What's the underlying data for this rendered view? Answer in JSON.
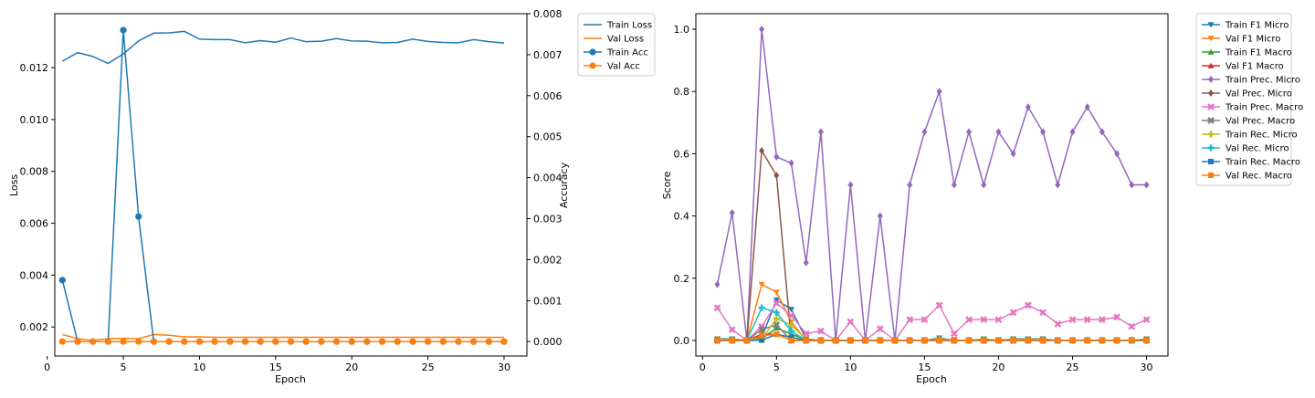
{
  "chart_data": [
    {
      "type": "line",
      "x": [
        1,
        2,
        3,
        4,
        5,
        6,
        7,
        8,
        9,
        10,
        11,
        12,
        13,
        14,
        15,
        16,
        17,
        18,
        19,
        20,
        21,
        22,
        23,
        24,
        25,
        26,
        27,
        28,
        29,
        30
      ],
      "xlabel": "Epoch",
      "ylabel": "Loss",
      "y2label": "Accuracy",
      "xlim": [
        0.5,
        31.5
      ],
      "ylim": [
        0.00088,
        0.01408
      ],
      "y2lim": [
        -0.000352,
        0.008
      ],
      "xticks": [
        "0",
        "5",
        "10",
        "15",
        "20",
        "25",
        "30"
      ],
      "yticks": [
        "0.002",
        "0.004",
        "0.006",
        "0.008",
        "0.010",
        "0.012"
      ],
      "y2ticks": [
        "0.000",
        "0.001",
        "0.002",
        "0.003",
        "0.004",
        "0.005",
        "0.006",
        "0.007",
        "0.008"
      ],
      "legend_position": "outside-top-right",
      "grid": false,
      "series": [
        {
          "name": "Train Loss",
          "axis": "left",
          "color": "#1f77b4",
          "marker": "none",
          "values": [
            0.01225,
            0.01258,
            0.01243,
            0.01216,
            0.01253,
            0.01303,
            0.01333,
            0.01334,
            0.0134,
            0.0131,
            0.01308,
            0.01308,
            0.01296,
            0.01304,
            0.01298,
            0.01314,
            0.013,
            0.01302,
            0.01312,
            0.01303,
            0.01302,
            0.01296,
            0.01297,
            0.0131,
            0.01301,
            0.01297,
            0.01296,
            0.01308,
            0.013,
            0.01295
          ]
        },
        {
          "name": "Val Loss",
          "axis": "left",
          "color": "#ff7f0e",
          "marker": "none",
          "values": [
            0.00171,
            0.00155,
            0.00148,
            0.00155,
            0.00156,
            0.00155,
            0.00171,
            0.00168,
            0.00162,
            0.00162,
            0.0016,
            0.0016,
            0.0016,
            0.0016,
            0.0016,
            0.0016,
            0.0016,
            0.0016,
            0.0016,
            0.0016,
            0.0016,
            0.0016,
            0.0016,
            0.0016,
            0.0016,
            0.0016,
            0.0016,
            0.0016,
            0.0016,
            0.0016
          ]
        },
        {
          "name": "Train Acc",
          "axis": "right",
          "color": "#1f77b4",
          "marker": "circle",
          "values": [
            0.0015,
            0,
            0,
            0,
            0.0076,
            0.00305,
            0,
            0,
            0,
            0,
            0,
            0,
            0,
            0,
            0,
            0,
            0,
            0,
            0,
            0,
            0,
            0,
            0,
            0,
            0,
            0,
            0,
            0,
            0,
            0
          ]
        },
        {
          "name": "Val Acc",
          "axis": "right",
          "color": "#ff7f0e",
          "marker": "circle",
          "values": [
            0,
            0,
            0,
            0,
            0,
            0,
            0,
            0,
            0,
            0,
            0,
            0,
            0,
            0,
            0,
            0,
            0,
            0,
            0,
            0,
            0,
            0,
            0,
            0,
            0,
            0,
            0,
            0,
            0,
            0
          ]
        }
      ]
    },
    {
      "type": "line",
      "x": [
        1,
        2,
        3,
        4,
        5,
        6,
        7,
        8,
        9,
        10,
        11,
        12,
        13,
        14,
        15,
        16,
        17,
        18,
        19,
        20,
        21,
        22,
        23,
        24,
        25,
        26,
        27,
        28,
        29,
        30
      ],
      "xlabel": "Epoch",
      "ylabel": "Score",
      "xlim": [
        -0.45,
        31.45
      ],
      "ylim": [
        -0.05,
        1.05
      ],
      "xticks": [
        "0",
        "5",
        "10",
        "15",
        "20",
        "25",
        "30"
      ],
      "yticks": [
        "0.0",
        "0.2",
        "0.4",
        "0.6",
        "0.8",
        "1.0"
      ],
      "legend_position": "outside-top-right",
      "grid": false,
      "series": [
        {
          "name": "Train F1 Micro",
          "color": "#1f77b4",
          "marker": "triangle-down",
          "values": [
            0.005,
            0.005,
            0,
            0.01,
            0.13,
            0.1,
            0.005,
            0,
            0,
            0,
            0,
            0,
            0,
            0,
            0,
            0.008,
            0,
            0,
            0.005,
            0,
            0.005,
            0.005,
            0.005,
            0,
            0,
            0,
            0,
            0,
            0,
            0.005
          ]
        },
        {
          "name": "Val F1 Micro",
          "color": "#ff7f0e",
          "marker": "triangle-down",
          "values": [
            0,
            0,
            0,
            0.18,
            0.155,
            0.06,
            0,
            0,
            0,
            0,
            0,
            0,
            0,
            0,
            0,
            0,
            0,
            0,
            0,
            0,
            0,
            0,
            0,
            0,
            0,
            0,
            0,
            0,
            0,
            0
          ]
        },
        {
          "name": "Train F1 Macro",
          "color": "#2ca02c",
          "marker": "triangle-up",
          "values": [
            0.003,
            0.003,
            0,
            0.005,
            0.04,
            0.02,
            0.003,
            0,
            0,
            0,
            0,
            0,
            0,
            0,
            0,
            0.004,
            0,
            0,
            0.003,
            0,
            0.003,
            0.003,
            0.003,
            0,
            0,
            0,
            0,
            0,
            0,
            0.003
          ]
        },
        {
          "name": "Val F1 Macro",
          "color": "#d62728",
          "marker": "triangle-up",
          "values": [
            0,
            0,
            0,
            0.02,
            0.02,
            0.01,
            0,
            0,
            0,
            0,
            0,
            0,
            0,
            0,
            0,
            0,
            0,
            0,
            0,
            0,
            0,
            0,
            0,
            0,
            0,
            0,
            0,
            0,
            0,
            0
          ]
        },
        {
          "name": "Train Prec. Micro",
          "color": "#9467bd",
          "marker": "diamond",
          "values": [
            0.18,
            0.41,
            0,
            1.0,
            0.59,
            0.57,
            0.25,
            0.67,
            0,
            0.5,
            0,
            0.4,
            0,
            0.5,
            0.67,
            0.8,
            0.5,
            0.67,
            0.5,
            0.67,
            0.6,
            0.75,
            0.67,
            0.5,
            0.67,
            0.75,
            0.67,
            0.6,
            0.5,
            0.5
          ]
        },
        {
          "name": "Val Prec. Micro",
          "color": "#8c564b",
          "marker": "diamond",
          "values": [
            0,
            0,
            0,
            0.61,
            0.53,
            0,
            0,
            0,
            0,
            0,
            0,
            0,
            0,
            0,
            0,
            0,
            0,
            0,
            0,
            0,
            0,
            0,
            0,
            0,
            0,
            0,
            0,
            0,
            0,
            0
          ]
        },
        {
          "name": "Train Prec. Macro",
          "color": "#e377c2",
          "marker": "x",
          "values": [
            0.105,
            0.035,
            0,
            0.045,
            0.12,
            0.08,
            0.022,
            0.03,
            0,
            0.06,
            0,
            0.037,
            0,
            0.067,
            0.067,
            0.113,
            0.022,
            0.067,
            0.067,
            0.067,
            0.09,
            0.113,
            0.09,
            0.053,
            0.067,
            0.067,
            0.067,
            0.075,
            0.045,
            0.067
          ]
        },
        {
          "name": "Val Prec. Macro",
          "color": "#7f7f7f",
          "marker": "x",
          "values": [
            0,
            0,
            0,
            0.035,
            0.05,
            0,
            0,
            0,
            0,
            0,
            0,
            0,
            0,
            0,
            0,
            0,
            0,
            0,
            0,
            0,
            0,
            0,
            0,
            0,
            0,
            0,
            0,
            0,
            0,
            0
          ]
        },
        {
          "name": "Train Rec. Micro",
          "color": "#bcbd22",
          "marker": "plus",
          "values": [
            0.003,
            0.003,
            0,
            0.005,
            0.07,
            0.05,
            0.003,
            0,
            0,
            0,
            0,
            0,
            0,
            0,
            0,
            0.004,
            0,
            0,
            0.003,
            0,
            0.003,
            0.003,
            0.003,
            0,
            0,
            0,
            0,
            0,
            0,
            0.003
          ]
        },
        {
          "name": "Val Rec. Micro",
          "color": "#17becf",
          "marker": "plus",
          "values": [
            0,
            0,
            0,
            0.105,
            0.09,
            0.03,
            0,
            0,
            0,
            0,
            0,
            0,
            0,
            0,
            0,
            0,
            0,
            0,
            0,
            0,
            0,
            0,
            0,
            0,
            0,
            0,
            0,
            0,
            0,
            0
          ]
        },
        {
          "name": "Train Rec. Macro",
          "color": "#1f77b4",
          "marker": "square",
          "values": [
            0.001,
            0.001,
            0,
            0.001,
            0.02,
            0.01,
            0.001,
            0,
            0,
            0,
            0,
            0,
            0,
            0,
            0,
            0.001,
            0,
            0,
            0.001,
            0,
            0.001,
            0.001,
            0.001,
            0,
            0,
            0,
            0,
            0,
            0,
            0.001
          ]
        },
        {
          "name": "Val Rec. Macro",
          "color": "#ff7f0e",
          "marker": "square",
          "values": [
            0,
            0,
            0,
            0.015,
            0.02,
            0,
            0,
            0,
            0,
            0,
            0,
            0,
            0,
            0,
            0,
            0,
            0,
            0,
            0,
            0,
            0,
            0,
            0,
            0,
            0,
            0,
            0,
            0,
            0,
            0
          ]
        }
      ]
    }
  ]
}
